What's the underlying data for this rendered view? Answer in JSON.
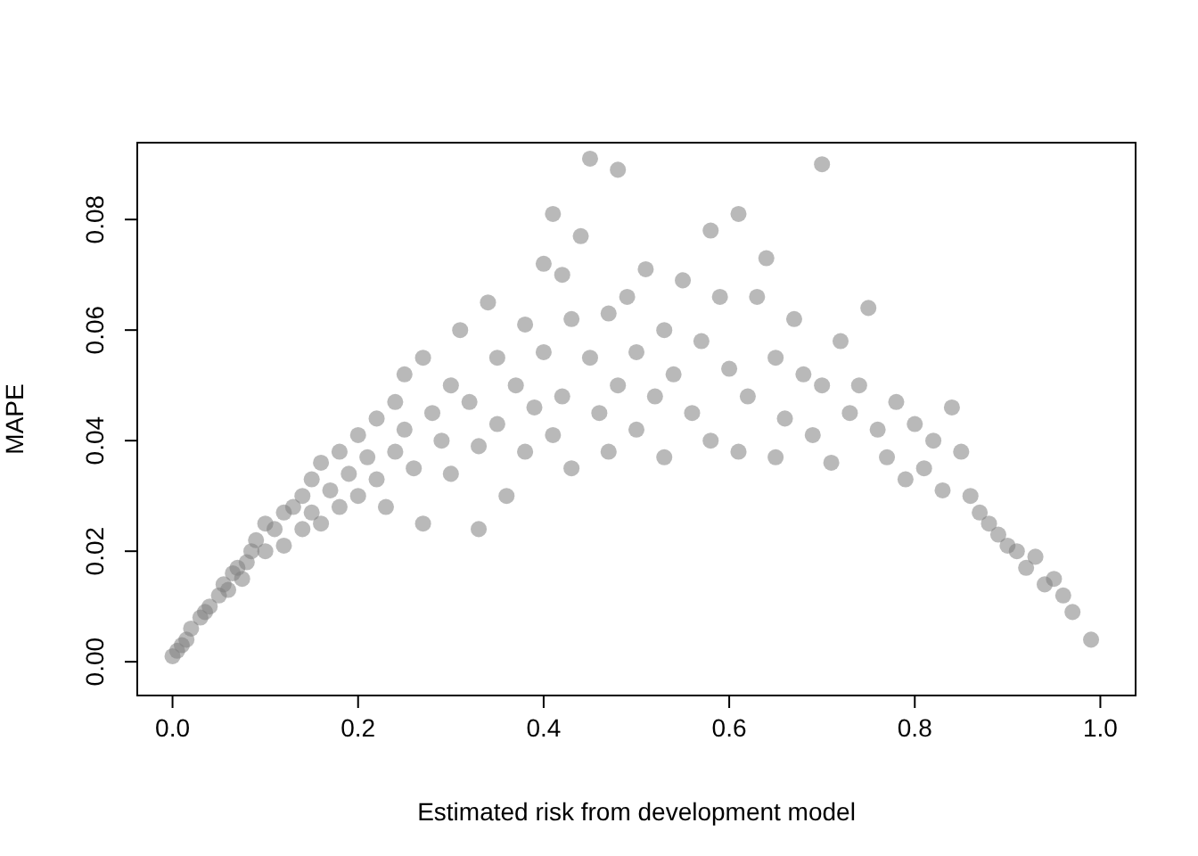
{
  "chart_data": {
    "type": "scatter",
    "xlabel": "Estimated risk from development model",
    "ylabel": "MAPE",
    "marker": "circle",
    "grid": false,
    "xlim": [
      -0.038,
      1.038
    ],
    "ylim": [
      -0.0061,
      0.0939
    ],
    "xticks": [
      {
        "value": 0,
        "label": "0.0"
      },
      {
        "value": 0.2,
        "label": "0.2"
      },
      {
        "value": 0.4,
        "label": "0.4"
      },
      {
        "value": 0.6,
        "label": "0.6"
      },
      {
        "value": 0.8,
        "label": "0.8"
      },
      {
        "value": 1,
        "label": "1.0"
      }
    ],
    "yticks": [
      {
        "value": 0,
        "label": "0.00"
      },
      {
        "value": 0.02,
        "label": "0.02"
      },
      {
        "value": 0.04,
        "label": "0.04"
      },
      {
        "value": 0.06,
        "label": "0.06"
      },
      {
        "value": 0.08,
        "label": "0.08"
      }
    ],
    "series": [
      {
        "color": "#808080",
        "x": [
          0.0,
          0.005,
          0.01,
          0.015,
          0.02,
          0.03,
          0.035,
          0.04,
          0.05,
          0.055,
          0.06,
          0.065,
          0.07,
          0.075,
          0.08,
          0.085,
          0.09,
          0.1,
          0.1,
          0.11,
          0.12,
          0.12,
          0.13,
          0.14,
          0.14,
          0.15,
          0.15,
          0.16,
          0.16,
          0.17,
          0.18,
          0.18,
          0.19,
          0.2,
          0.2,
          0.21,
          0.22,
          0.22,
          0.23,
          0.24,
          0.24,
          0.25,
          0.25,
          0.26,
          0.27,
          0.27,
          0.28,
          0.29,
          0.3,
          0.3,
          0.31,
          0.32,
          0.33,
          0.33,
          0.34,
          0.35,
          0.35,
          0.36,
          0.37,
          0.38,
          0.38,
          0.39,
          0.4,
          0.4,
          0.41,
          0.41,
          0.42,
          0.42,
          0.43,
          0.43,
          0.44,
          0.45,
          0.45,
          0.46,
          0.47,
          0.47,
          0.48,
          0.48,
          0.49,
          0.5,
          0.5,
          0.51,
          0.52,
          0.53,
          0.53,
          0.54,
          0.55,
          0.56,
          0.57,
          0.58,
          0.58,
          0.59,
          0.6,
          0.61,
          0.61,
          0.62,
          0.63,
          0.64,
          0.65,
          0.65,
          0.66,
          0.67,
          0.68,
          0.69,
          0.7,
          0.7,
          0.71,
          0.72,
          0.73,
          0.74,
          0.75,
          0.76,
          0.77,
          0.78,
          0.79,
          0.8,
          0.81,
          0.82,
          0.83,
          0.84,
          0.85,
          0.86,
          0.87,
          0.88,
          0.89,
          0.9,
          0.91,
          0.92,
          0.93,
          0.94,
          0.95,
          0.96,
          0.97,
          0.99
        ],
        "values": [
          0.001,
          0.002,
          0.003,
          0.004,
          0.006,
          0.008,
          0.009,
          0.01,
          0.012,
          0.014,
          0.013,
          0.016,
          0.017,
          0.015,
          0.018,
          0.02,
          0.022,
          0.02,
          0.025,
          0.024,
          0.027,
          0.021,
          0.028,
          0.03,
          0.024,
          0.033,
          0.027,
          0.036,
          0.025,
          0.031,
          0.038,
          0.028,
          0.034,
          0.041,
          0.03,
          0.037,
          0.044,
          0.033,
          0.028,
          0.047,
          0.038,
          0.052,
          0.042,
          0.035,
          0.055,
          0.025,
          0.045,
          0.04,
          0.05,
          0.034,
          0.06,
          0.047,
          0.024,
          0.039,
          0.065,
          0.055,
          0.043,
          0.03,
          0.05,
          0.061,
          0.038,
          0.046,
          0.072,
          0.056,
          0.081,
          0.041,
          0.07,
          0.048,
          0.062,
          0.035,
          0.077,
          0.091,
          0.055,
          0.045,
          0.063,
          0.038,
          0.089,
          0.05,
          0.066,
          0.056,
          0.042,
          0.071,
          0.048,
          0.06,
          0.037,
          0.052,
          0.069,
          0.045,
          0.058,
          0.078,
          0.04,
          0.066,
          0.053,
          0.081,
          0.038,
          0.048,
          0.066,
          0.073,
          0.055,
          0.037,
          0.044,
          0.062,
          0.052,
          0.041,
          0.09,
          0.05,
          0.036,
          0.058,
          0.045,
          0.05,
          0.064,
          0.042,
          0.037,
          0.047,
          0.033,
          0.043,
          0.035,
          0.04,
          0.031,
          0.046,
          0.038,
          0.03,
          0.027,
          0.025,
          0.023,
          0.021,
          0.02,
          0.017,
          0.019,
          0.014,
          0.015,
          0.012,
          0.009,
          0.004
        ]
      }
    ]
  }
}
